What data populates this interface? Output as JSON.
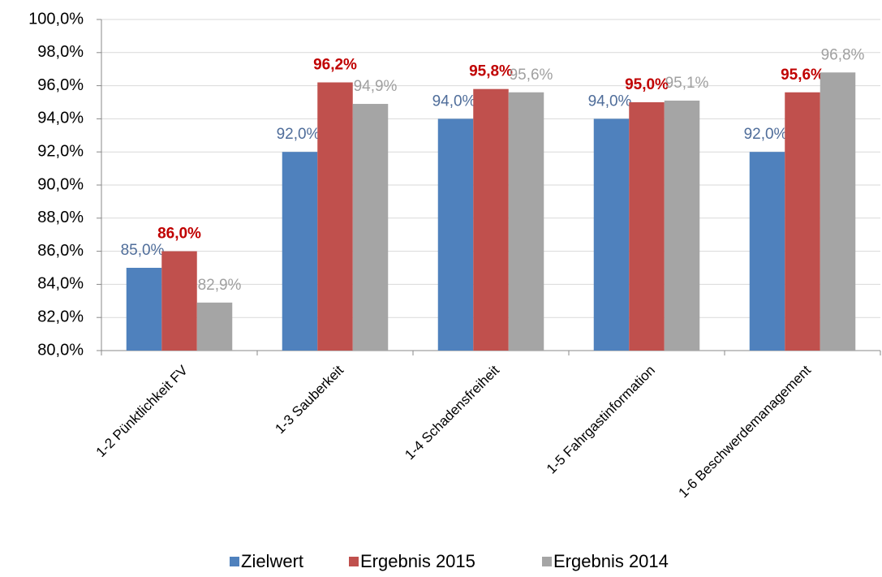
{
  "chart_data": {
    "type": "bar",
    "categories": [
      "1-2 Pünktlichkeit FV",
      "1-3 Sauberkeit",
      "1-4 Schadensfreiheit",
      "1-5 Fahrgastinformation",
      "1-6 Beschwerdemanagement"
    ],
    "series": [
      {
        "name": "Zielwert",
        "color": "#4f81bd",
        "label_color": "#4f6d9a",
        "values": [
          85,
          92,
          94,
          94,
          92
        ],
        "value_labels": [
          "85,0%",
          "92,0%",
          "94,0%",
          "94,0%",
          "92,0%"
        ]
      },
      {
        "name": "Ergebnis 2015",
        "color": "#c0504d",
        "label_color": "#c00000",
        "bold_labels": true,
        "values": [
          86,
          96.2,
          95.8,
          95,
          95.6
        ],
        "value_labels": [
          "86,0%",
          "96,2%",
          "95,8%",
          "95,0%",
          "95,6%"
        ]
      },
      {
        "name": "Ergebnis 2014",
        "color": "#a5a5a5",
        "label_color": "#a0a0a0",
        "values": [
          82.9,
          94.9,
          95.6,
          95.1,
          96.8
        ],
        "value_labels": [
          "82,9%",
          "94,9%",
          "95,6%",
          "95,1%",
          "96,8%"
        ]
      }
    ],
    "ylim": [
      80,
      100
    ],
    "yticks": [
      {
        "value": 80,
        "label": "80,0%"
      },
      {
        "value": 82,
        "label": "82,0%"
      },
      {
        "value": 84,
        "label": "84,0%"
      },
      {
        "value": 86,
        "label": "86,0%"
      },
      {
        "value": 88,
        "label": "88,0%"
      },
      {
        "value": 90,
        "label": "90,0%"
      },
      {
        "value": 92,
        "label": "92,0%"
      },
      {
        "value": 94,
        "label": "94,0%"
      },
      {
        "value": 96,
        "label": "96,0%"
      },
      {
        "value": 98,
        "label": "98,0%"
      },
      {
        "value": 100,
        "label": "100,0%"
      }
    ],
    "grid": true,
    "legend": "bottom"
  }
}
